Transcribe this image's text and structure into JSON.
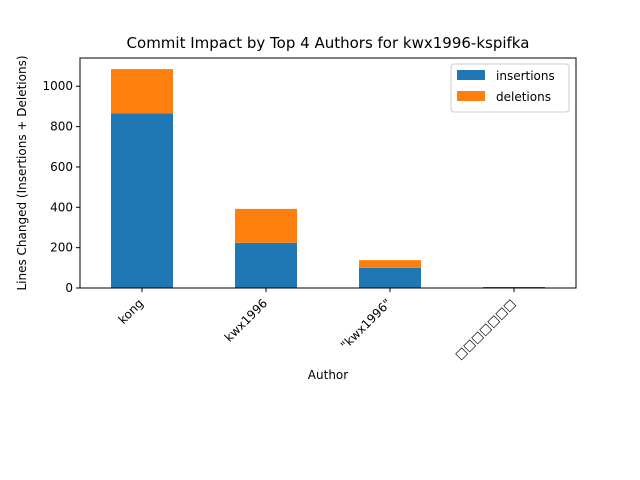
{
  "chart_data": {
    "type": "bar",
    "stacked": true,
    "title": "Commit Impact by Top 4 Authors for kwx1996-kspifka",
    "xlabel": "Author",
    "ylabel": "Lines Changed (Insertions + Deletions)",
    "categories": [
      "kong",
      "kwx1996",
      "\"kwx1996\"",
      "□□□□□□□"
    ],
    "series": [
      {
        "name": "insertions",
        "color": "#1f77b4",
        "values": [
          866,
          224,
          100,
          5
        ]
      },
      {
        "name": "deletions",
        "color": "#ff7f0e",
        "values": [
          219,
          168,
          38,
          0
        ]
      }
    ],
    "ylim": [
      0,
      1140
    ],
    "yticks": [
      0,
      200,
      400,
      600,
      800,
      1000
    ],
    "legend_position": "top-right",
    "grid": false
  }
}
